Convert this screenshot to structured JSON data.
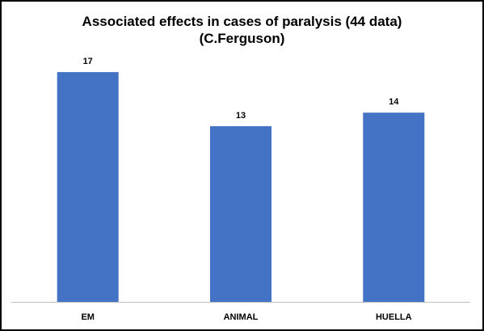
{
  "chart_data": {
    "type": "bar",
    "title": "Associated effects in cases of paralysis (44 data)",
    "subtitle": "(C.Ferguson)",
    "categories": [
      "EM",
      "ANIMAL",
      "HUELLA"
    ],
    "values": [
      17,
      13,
      14
    ],
    "data_labels": [
      "17",
      "13",
      "14"
    ],
    "ylim": [
      0,
      19.5
    ],
    "grid": false,
    "legend": "none",
    "bar_color": "#4472C4"
  }
}
